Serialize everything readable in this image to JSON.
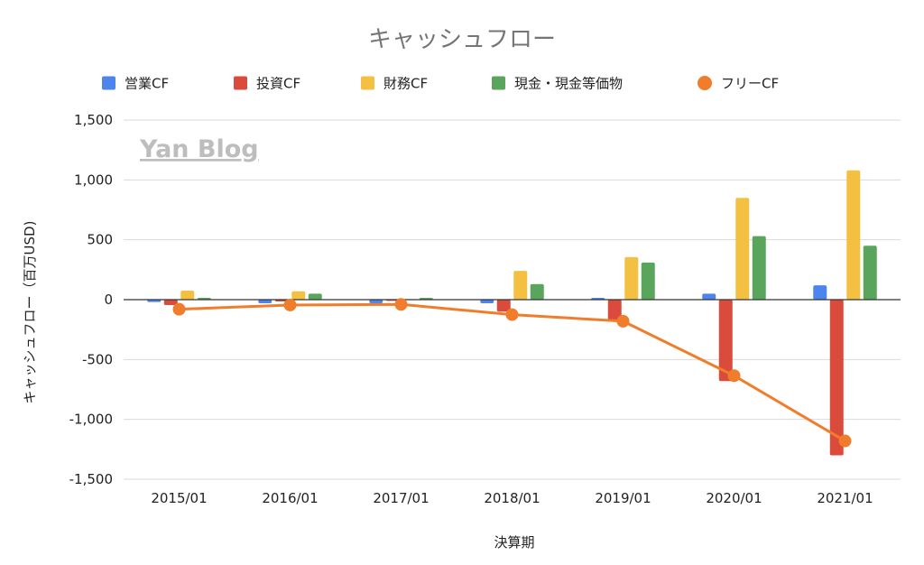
{
  "chart_data": {
    "type": "bar",
    "title": "キャッシュフロー",
    "watermark": "Yan Blog",
    "xlabel": "決算期",
    "ylabel": "キャッシュフロー（百万USD)",
    "ylim": [
      -1500,
      1500
    ],
    "yticks": [
      1500,
      1000,
      500,
      0,
      -500,
      -1000,
      -1500
    ],
    "ytick_labels": [
      "1,500",
      "1,000",
      "500",
      "0",
      "-500",
      "-1,000",
      "-1,500"
    ],
    "grid": true,
    "legend_position": "top",
    "categories": [
      "2015/01",
      "2016/01",
      "2017/01",
      "2018/01",
      "2019/01",
      "2020/01",
      "2021/01"
    ],
    "series": [
      {
        "name": "営業CF",
        "type": "bar",
        "color": "#4e84ee",
        "values": [
          -20,
          -30,
          -30,
          -30,
          15,
          50,
          120
        ]
      },
      {
        "name": "投資CF",
        "type": "bar",
        "color": "#db4b3b",
        "values": [
          -45,
          -15,
          -10,
          -100,
          -180,
          -680,
          -1300
        ]
      },
      {
        "name": "財務CF",
        "type": "bar",
        "color": "#f4c042",
        "values": [
          75,
          70,
          5,
          240,
          355,
          850,
          1080
        ]
      },
      {
        "name": "現金・現金等価物",
        "type": "bar",
        "color": "#5aa55c",
        "values": [
          15,
          50,
          15,
          130,
          310,
          530,
          450
        ]
      },
      {
        "name": "フリーCF",
        "type": "line",
        "color": "#f07d2b",
        "values": [
          -80,
          -45,
          -40,
          -125,
          -180,
          -635,
          -1180
        ]
      }
    ]
  }
}
